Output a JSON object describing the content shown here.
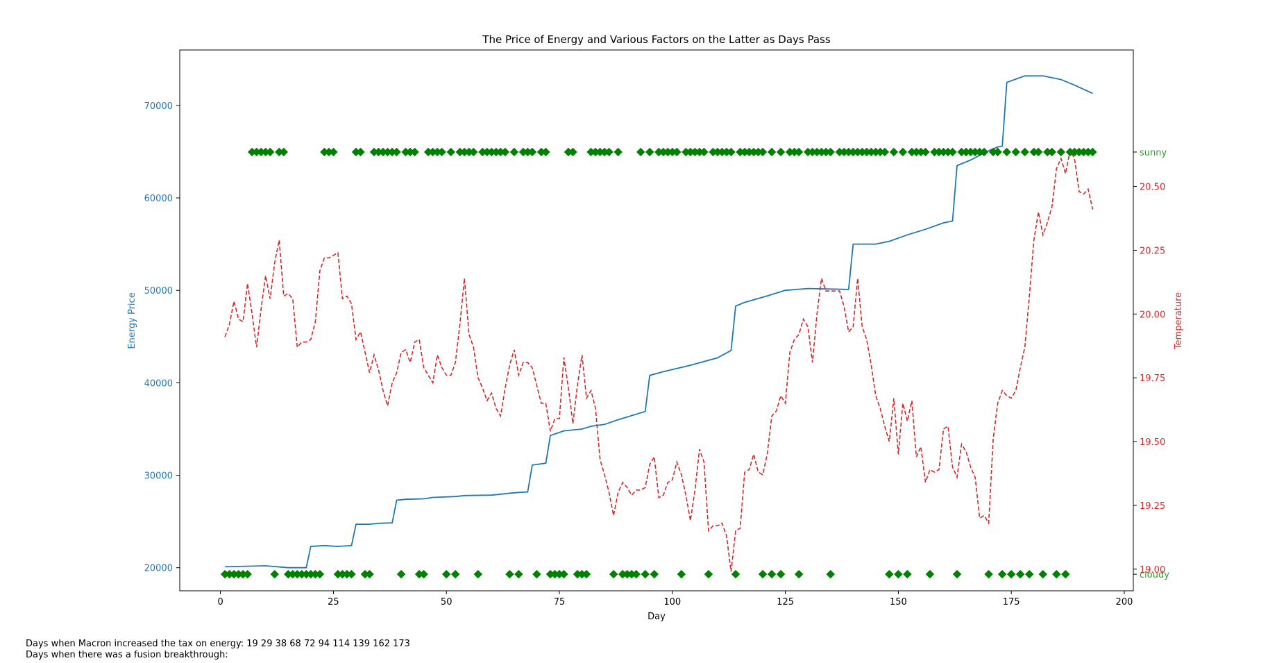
{
  "chart_data": {
    "type": "line",
    "title": "The Price of Energy and Various Factors on the Latter as Days Pass",
    "xlabel": "Day",
    "ylabel_left": "Energy Price",
    "ylabel_right": "Temperature",
    "xlim": [
      -9,
      202
    ],
    "ylim_left": [
      17500,
      76000
    ],
    "ylim_right": [
      18.915,
      21.035
    ],
    "xticks": [
      0,
      25,
      50,
      75,
      100,
      125,
      150,
      175,
      200
    ],
    "yticks_left": [
      20000,
      30000,
      40000,
      50000,
      60000,
      70000
    ],
    "yticks_right": [
      19.0,
      19.25,
      19.5,
      19.75,
      20.0,
      20.25,
      20.5
    ],
    "yticks_right_labels": [
      "19.00",
      "19.25",
      "19.50",
      "19.75",
      "20.00",
      "20.25",
      "20.50"
    ],
    "weather_labels": [
      "sunny",
      "cloudy"
    ],
    "colors": {
      "price": "#1f77b4",
      "temperature": "#d62728",
      "weather": "#008000",
      "weather_label": "#2ca02c"
    },
    "series": [
      {
        "name": "Energy Price",
        "axis": "left",
        "style": "solid",
        "points": [
          [
            1,
            20100
          ],
          [
            10,
            20200
          ],
          [
            15,
            20000
          ],
          [
            19,
            20000
          ],
          [
            20,
            22300
          ],
          [
            23,
            22400
          ],
          [
            26,
            22300
          ],
          [
            29,
            22400
          ],
          [
            30,
            24700
          ],
          [
            33,
            24700
          ],
          [
            35,
            24800
          ],
          [
            38,
            24850
          ],
          [
            39,
            27300
          ],
          [
            41,
            27400
          ],
          [
            45,
            27450
          ],
          [
            47,
            27600
          ],
          [
            52,
            27700
          ],
          [
            54,
            27800
          ],
          [
            60,
            27850
          ],
          [
            65,
            28100
          ],
          [
            68,
            28200
          ],
          [
            69,
            31100
          ],
          [
            72,
            31300
          ],
          [
            73,
            34300
          ],
          [
            76,
            34800
          ],
          [
            80,
            35000
          ],
          [
            82,
            35300
          ],
          [
            85,
            35500
          ],
          [
            88,
            36000
          ],
          [
            94,
            36900
          ],
          [
            95,
            40800
          ],
          [
            98,
            41200
          ],
          [
            104,
            41900
          ],
          [
            110,
            42700
          ],
          [
            113,
            43500
          ],
          [
            114,
            48300
          ],
          [
            116,
            48700
          ],
          [
            121,
            49400
          ],
          [
            125,
            50000
          ],
          [
            130,
            50200
          ],
          [
            134,
            50150
          ],
          [
            139,
            50100
          ],
          [
            140,
            55000
          ],
          [
            145,
            55000
          ],
          [
            148,
            55300
          ],
          [
            152,
            56000
          ],
          [
            156,
            56600
          ],
          [
            160,
            57300
          ],
          [
            162,
            57500
          ],
          [
            163,
            63500
          ],
          [
            166,
            64100
          ],
          [
            170,
            65100
          ],
          [
            172,
            65500
          ],
          [
            173,
            65600
          ],
          [
            174,
            72500
          ],
          [
            178,
            73200
          ],
          [
            182,
            73200
          ],
          [
            186,
            72800
          ],
          [
            189,
            72200
          ],
          [
            193,
            71300
          ]
        ]
      },
      {
        "name": "Temperature",
        "axis": "right",
        "style": "dashed",
        "points": [
          [
            1,
            19.91
          ],
          [
            2,
            19.96
          ],
          [
            3,
            20.05
          ],
          [
            4,
            19.98
          ],
          [
            5,
            19.97
          ],
          [
            6,
            20.12
          ],
          [
            7,
            20.0
          ],
          [
            8,
            19.87
          ],
          [
            9,
            20.02
          ],
          [
            10,
            20.15
          ],
          [
            11,
            20.06
          ],
          [
            12,
            20.2
          ],
          [
            13,
            20.29
          ],
          [
            14,
            20.07
          ],
          [
            15,
            20.08
          ],
          [
            16,
            20.06
          ],
          [
            17,
            19.87
          ],
          [
            18,
            19.89
          ],
          [
            19,
            19.89
          ],
          [
            20,
            19.9
          ],
          [
            21,
            19.97
          ],
          [
            22,
            20.17
          ],
          [
            23,
            20.22
          ],
          [
            24,
            20.22
          ],
          [
            25,
            20.23
          ],
          [
            26,
            20.24
          ],
          [
            27,
            20.06
          ],
          [
            28,
            20.07
          ],
          [
            29,
            20.04
          ],
          [
            30,
            19.9
          ],
          [
            31,
            19.93
          ],
          [
            32,
            19.85
          ],
          [
            33,
            19.77
          ],
          [
            34,
            19.84
          ],
          [
            35,
            19.78
          ],
          [
            36,
            19.7
          ],
          [
            37,
            19.64
          ],
          [
            38,
            19.73
          ],
          [
            39,
            19.77
          ],
          [
            40,
            19.85
          ],
          [
            41,
            19.86
          ],
          [
            42,
            19.81
          ],
          [
            43,
            19.89
          ],
          [
            44,
            19.9
          ],
          [
            45,
            19.79
          ],
          [
            46,
            19.76
          ],
          [
            47,
            19.73
          ],
          [
            48,
            19.84
          ],
          [
            49,
            19.79
          ],
          [
            50,
            19.76
          ],
          [
            51,
            19.76
          ],
          [
            52,
            19.81
          ],
          [
            53,
            19.96
          ],
          [
            54,
            20.14
          ],
          [
            55,
            19.92
          ],
          [
            56,
            19.87
          ],
          [
            57,
            19.75
          ],
          [
            58,
            19.71
          ],
          [
            59,
            19.66
          ],
          [
            60,
            19.69
          ],
          [
            61,
            19.63
          ],
          [
            62,
            19.6
          ],
          [
            63,
            19.71
          ],
          [
            64,
            19.8
          ],
          [
            65,
            19.86
          ],
          [
            66,
            19.76
          ],
          [
            67,
            19.81
          ],
          [
            68,
            19.81
          ],
          [
            69,
            19.79
          ],
          [
            70,
            19.72
          ],
          [
            71,
            19.65
          ],
          [
            72,
            19.65
          ],
          [
            73,
            19.54
          ],
          [
            74,
            19.59
          ],
          [
            75,
            19.59
          ],
          [
            76,
            19.83
          ],
          [
            77,
            19.71
          ],
          [
            78,
            19.57
          ],
          [
            79,
            19.72
          ],
          [
            80,
            19.84
          ],
          [
            81,
            19.67
          ],
          [
            82,
            19.7
          ],
          [
            83,
            19.63
          ],
          [
            84,
            19.43
          ],
          [
            85,
            19.37
          ],
          [
            86,
            19.3
          ],
          [
            87,
            19.21
          ],
          [
            88,
            19.3
          ],
          [
            89,
            19.34
          ],
          [
            90,
            19.32
          ],
          [
            91,
            19.29
          ],
          [
            92,
            19.31
          ],
          [
            93,
            19.31
          ],
          [
            94,
            19.32
          ],
          [
            95,
            19.41
          ],
          [
            96,
            19.44
          ],
          [
            97,
            19.28
          ],
          [
            98,
            19.29
          ],
          [
            99,
            19.34
          ],
          [
            100,
            19.35
          ],
          [
            101,
            19.42
          ],
          [
            102,
            19.37
          ],
          [
            103,
            19.29
          ],
          [
            104,
            19.19
          ],
          [
            105,
            19.31
          ],
          [
            106,
            19.47
          ],
          [
            107,
            19.42
          ],
          [
            108,
            19.15
          ],
          [
            109,
            19.17
          ],
          [
            110,
            19.17
          ],
          [
            111,
            19.18
          ],
          [
            112,
            19.13
          ],
          [
            113,
            18.99
          ],
          [
            114,
            19.15
          ],
          [
            115,
            19.16
          ],
          [
            116,
            19.38
          ],
          [
            117,
            19.39
          ],
          [
            118,
            19.45
          ],
          [
            119,
            19.38
          ],
          [
            120,
            19.37
          ],
          [
            121,
            19.45
          ],
          [
            122,
            19.6
          ],
          [
            123,
            19.62
          ],
          [
            124,
            19.68
          ],
          [
            125,
            19.65
          ],
          [
            126,
            19.85
          ],
          [
            127,
            19.9
          ],
          [
            128,
            19.92
          ],
          [
            129,
            19.98
          ],
          [
            130,
            19.95
          ],
          [
            131,
            19.81
          ],
          [
            132,
            20.0
          ],
          [
            133,
            20.14
          ],
          [
            134,
            20.09
          ],
          [
            135,
            20.09
          ],
          [
            136,
            20.09
          ],
          [
            137,
            20.09
          ],
          [
            138,
            20.03
          ],
          [
            139,
            19.93
          ],
          [
            140,
            19.95
          ],
          [
            141,
            20.14
          ],
          [
            142,
            19.95
          ],
          [
            143,
            19.9
          ],
          [
            144,
            19.8
          ],
          [
            145,
            19.68
          ],
          [
            146,
            19.63
          ],
          [
            147,
            19.56
          ],
          [
            148,
            19.5
          ],
          [
            149,
            19.67
          ],
          [
            150,
            19.45
          ],
          [
            151,
            19.65
          ],
          [
            152,
            19.58
          ],
          [
            153,
            19.66
          ],
          [
            154,
            19.44
          ],
          [
            155,
            19.48
          ],
          [
            156,
            19.34
          ],
          [
            157,
            19.39
          ],
          [
            158,
            19.38
          ],
          [
            159,
            19.39
          ],
          [
            160,
            19.55
          ],
          [
            161,
            19.56
          ],
          [
            162,
            19.4
          ],
          [
            163,
            19.36
          ],
          [
            164,
            19.49
          ],
          [
            165,
            19.46
          ],
          [
            166,
            19.4
          ],
          [
            167,
            19.36
          ],
          [
            168,
            19.2
          ],
          [
            169,
            19.21
          ],
          [
            170,
            19.18
          ],
          [
            171,
            19.51
          ],
          [
            172,
            19.65
          ],
          [
            173,
            19.7
          ],
          [
            174,
            19.68
          ],
          [
            175,
            19.67
          ],
          [
            176,
            19.7
          ],
          [
            177,
            19.79
          ],
          [
            178,
            19.87
          ],
          [
            179,
            20.07
          ],
          [
            180,
            20.29
          ],
          [
            181,
            20.4
          ],
          [
            182,
            20.31
          ],
          [
            183,
            20.36
          ],
          [
            184,
            20.42
          ],
          [
            185,
            20.57
          ],
          [
            186,
            20.61
          ],
          [
            187,
            20.55
          ],
          [
            188,
            20.64
          ],
          [
            189,
            20.61
          ],
          [
            190,
            20.48
          ],
          [
            191,
            20.47
          ],
          [
            192,
            20.49
          ],
          [
            193,
            20.41
          ]
        ]
      },
      {
        "name": "sunny",
        "axis": "right",
        "style": "markers",
        "days": [
          7,
          8,
          9,
          10,
          11,
          13,
          14,
          23,
          24,
          25,
          30,
          31,
          34,
          35,
          36,
          37,
          38,
          39,
          41,
          42,
          43,
          46,
          47,
          48,
          49,
          51,
          53,
          54,
          55,
          56,
          58,
          59,
          60,
          61,
          62,
          63,
          65,
          67,
          68,
          69,
          71,
          72,
          77,
          78,
          82,
          83,
          84,
          85,
          86,
          88,
          93,
          95,
          97,
          98,
          99,
          100,
          101,
          103,
          104,
          105,
          106,
          107,
          109,
          110,
          111,
          112,
          113,
          115,
          116,
          117,
          118,
          119,
          120,
          122,
          124,
          126,
          127,
          128,
          130,
          131,
          132,
          133,
          134,
          135,
          137,
          138,
          139,
          140,
          141,
          142,
          143,
          144,
          145,
          146,
          147,
          149,
          151,
          153,
          154,
          155,
          156,
          158,
          159,
          160,
          161,
          162,
          164,
          165,
          166,
          167,
          168,
          169,
          171,
          172,
          174,
          176,
          178,
          180,
          181,
          183,
          184,
          186,
          188,
          189,
          190,
          191,
          192,
          193
        ]
      },
      {
        "name": "cloudy",
        "axis": "right",
        "style": "markers",
        "days": [
          1,
          2,
          3,
          4,
          5,
          6,
          12,
          15,
          16,
          17,
          18,
          19,
          20,
          21,
          22,
          26,
          27,
          28,
          29,
          32,
          33,
          40,
          44,
          45,
          50,
          52,
          57,
          64,
          66,
          70,
          73,
          74,
          75,
          76,
          79,
          80,
          81,
          87,
          89,
          90,
          91,
          92,
          94,
          96,
          102,
          108,
          114,
          120,
          122,
          124,
          128,
          135,
          148,
          150,
          152,
          157,
          163,
          170,
          173,
          175,
          177,
          179,
          182,
          185,
          187
        ]
      }
    ]
  },
  "footer": {
    "macron_note": "Days when Macron increased the tax on energy: 19 29 38 68 72 94 114 139 162 173",
    "fusion_note": "Days when there was a fusion breakthrough:"
  }
}
